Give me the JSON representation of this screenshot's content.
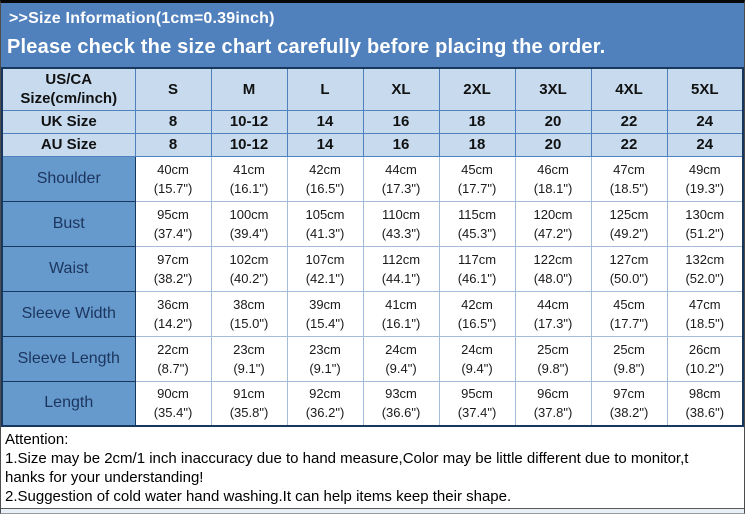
{
  "banner": {
    "line1": ">>Size Information(1cm=0.39inch)",
    "line2": "Please check the size chart carefully before placing the order."
  },
  "colors": {
    "banner_blue": "#5181bc",
    "header_light_blue": "#c7daee",
    "label_blue": "#6699cc",
    "label_text": "#1c355e",
    "grid_blue": "#4f81bd",
    "grid_light": "#a4bcd9",
    "outer_border": "#17375e",
    "strip": "#e8eff7"
  },
  "table": {
    "corner": {
      "line1": "US/CA",
      "line2": "Size(cm/inch)"
    },
    "sizes": [
      "S",
      "M",
      "L",
      "XL",
      "2XL",
      "3XL",
      "4XL",
      "5XL"
    ],
    "size_rows": [
      {
        "label": "UK Size",
        "values": [
          "8",
          "10-12",
          "14",
          "16",
          "18",
          "20",
          "22",
          "24"
        ]
      },
      {
        "label": "AU Size",
        "values": [
          "8",
          "10-12",
          "14",
          "16",
          "18",
          "20",
          "22",
          "24"
        ]
      }
    ],
    "measurement_rows": [
      {
        "label": "Shoulder",
        "cm": [
          "40cm",
          "41cm",
          "42cm",
          "44cm",
          "45cm",
          "46cm",
          "47cm",
          "49cm"
        ],
        "inch": [
          "(15.7\")",
          "(16.1\")",
          "(16.5\")",
          "(17.3\")",
          "(17.7\")",
          "(18.1\")",
          "(18.5\")",
          "(19.3\")"
        ]
      },
      {
        "label": "Bust",
        "cm": [
          "95cm",
          "100cm",
          "105cm",
          "110cm",
          "115cm",
          "120cm",
          "125cm",
          "130cm"
        ],
        "inch": [
          "(37.4\")",
          "(39.4\")",
          "(41.3\")",
          "(43.3\")",
          "(45.3\")",
          "(47.2\")",
          "(49.2\")",
          "(51.2\")"
        ]
      },
      {
        "label": "Waist",
        "cm": [
          "97cm",
          "102cm",
          "107cm",
          "112cm",
          "117cm",
          "122cm",
          "127cm",
          "132cm"
        ],
        "inch": [
          "(38.2\")",
          "(40.2\")",
          "(42.1\")",
          "(44.1\")",
          "(46.1\")",
          "(48.0\")",
          "(50.0\")",
          "(52.0\")"
        ]
      },
      {
        "label": "Sleeve Width",
        "cm": [
          "36cm",
          "38cm",
          "39cm",
          "41cm",
          "42cm",
          "44cm",
          "45cm",
          "47cm"
        ],
        "inch": [
          "(14.2\")",
          "(15.0\")",
          "(15.4\")",
          "(16.1\")",
          "(16.5\")",
          "(17.3\")",
          "(17.7\")",
          "(18.5\")"
        ]
      },
      {
        "label": "Sleeve Length",
        "cm": [
          "22cm",
          "23cm",
          "23cm",
          "24cm",
          "24cm",
          "25cm",
          "25cm",
          "26cm"
        ],
        "inch": [
          "(8.7\")",
          "(9.1\")",
          "(9.1\")",
          "(9.4\")",
          "(9.4\")",
          "(9.8\")",
          "(9.8\")",
          "(10.2\")"
        ]
      },
      {
        "label": "Length",
        "cm": [
          "90cm",
          "91cm",
          "92cm",
          "93cm",
          "95cm",
          "96cm",
          "97cm",
          "98cm"
        ],
        "inch": [
          "(35.4\")",
          "(35.8\")",
          "(36.2\")",
          "(36.6\")",
          "(37.4\")",
          "(37.8\")",
          "(38.2\")",
          "(38.6\")"
        ]
      }
    ]
  },
  "attention": {
    "title": "Attention:",
    "lines": [
      "1.Size may be 2cm/1 inch inaccuracy due to hand measure,Color may be little different due to monitor,t",
      "hanks for your understanding!",
      "2.Suggestion of cold water hand washing.It can help items keep their shape."
    ]
  }
}
